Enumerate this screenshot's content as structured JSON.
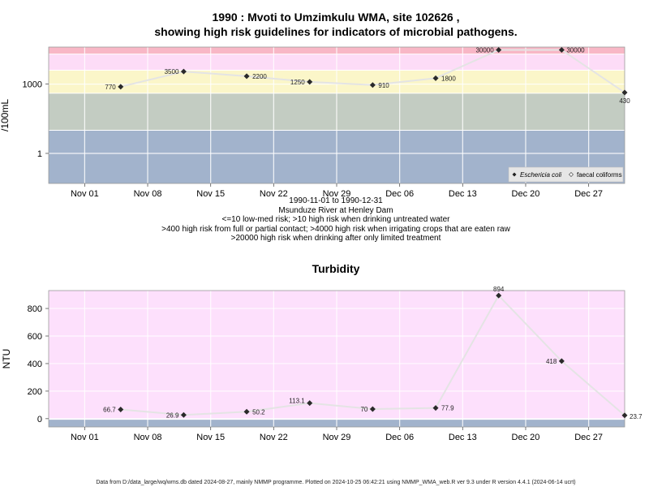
{
  "chart_data": [
    {
      "type": "line",
      "title_line1": "1990 : Mvoti to Umzimkulu WMA, site 102626 ,",
      "title_line2": "showing high risk guidelines for indicators of microbial pathogens.",
      "ylabel": "/100mL",
      "y_scale": "log",
      "yticks": [
        {
          "value": 1,
          "label": "1"
        },
        {
          "value": 1000,
          "label": "1000"
        }
      ],
      "ylim": [
        0.05,
        40000
      ],
      "xlim": [
        "1990-10-28",
        "1990-12-31"
      ],
      "xticks": [
        {
          "date": "1990-11-01",
          "label": "Nov 01"
        },
        {
          "date": "1990-11-08",
          "label": "Nov 08"
        },
        {
          "date": "1990-11-15",
          "label": "Nov 15"
        },
        {
          "date": "1990-11-22",
          "label": "Nov 22"
        },
        {
          "date": "1990-11-29",
          "label": "Nov 29"
        },
        {
          "date": "1990-12-06",
          "label": "Dec 06"
        },
        {
          "date": "1990-12-13",
          "label": "Dec 13"
        },
        {
          "date": "1990-12-20",
          "label": "Dec 20"
        },
        {
          "date": "1990-12-27",
          "label": "Dec 27"
        }
      ],
      "bands": [
        {
          "from": 0.05,
          "to": 10,
          "color": "#a2b3cc"
        },
        {
          "from": 10,
          "to": 400,
          "color": "#c3ccc2"
        },
        {
          "from": 400,
          "to": 4000,
          "color": "#fbf6c9"
        },
        {
          "from": 4000,
          "to": 20000,
          "color": "#fddcf7"
        },
        {
          "from": 20000,
          "to": 40000,
          "color": "#f8b7c6"
        }
      ],
      "series": [
        {
          "name": "Eschericia coli",
          "points": [
            {
              "x": "1990-11-05",
              "y": 770,
              "label": "770"
            },
            {
              "x": "1990-11-12",
              "y": 3500,
              "label": "3500"
            },
            {
              "x": "1990-11-19",
              "y": 2200,
              "label": "2200"
            },
            {
              "x": "1990-11-26",
              "y": 1250,
              "label": "1250"
            },
            {
              "x": "1990-12-03",
              "y": 910,
              "label": "910"
            },
            {
              "x": "1990-12-10",
              "y": 1800,
              "label": "1800"
            },
            {
              "x": "1990-12-17",
              "y": 30000,
              "label": "30000"
            },
            {
              "x": "1990-12-24",
              "y": 30000,
              "label": "30000"
            },
            {
              "x": "1990-12-31",
              "y": 430,
              "label": "430"
            }
          ]
        }
      ],
      "legend": {
        "position": "bottom-right",
        "items": [
          {
            "label": "Eschericia coli",
            "marker": "filled-diamond"
          },
          {
            "label": "faecal coliforms",
            "marker": "open-diamond"
          }
        ]
      },
      "subtitle_lines": [
        "1990-11-01 to 1990-12-31",
        "Msunduze River at Henley Dam",
        "<=10 low-med risk; >10 high risk when drinking untreated water",
        ">400 high risk from full or partial contact; >4000 high risk when irrigating crops that are eaten raw",
        ">20000 high risk when drinking after only limited treatment"
      ]
    },
    {
      "type": "line",
      "title": "Turbidity",
      "ylabel": "NTU",
      "ylim": [
        -60,
        930
      ],
      "yticks": [
        0,
        200,
        400,
        600,
        800
      ],
      "xlim": [
        "1990-10-28",
        "1990-12-31"
      ],
      "xticks": [
        {
          "date": "1990-11-01",
          "label": "Nov 01"
        },
        {
          "date": "1990-11-08",
          "label": "Nov 08"
        },
        {
          "date": "1990-11-15",
          "label": "Nov 15"
        },
        {
          "date": "1990-11-22",
          "label": "Nov 22"
        },
        {
          "date": "1990-11-29",
          "label": "Nov 29"
        },
        {
          "date": "1990-12-06",
          "label": "Dec 06"
        },
        {
          "date": "1990-12-13",
          "label": "Dec 13"
        },
        {
          "date": "1990-12-20",
          "label": "Dec 20"
        },
        {
          "date": "1990-12-27",
          "label": "Dec 27"
        }
      ],
      "bands": [
        {
          "from": -60,
          "to": -5,
          "color": "#a2b3cc"
        },
        {
          "from": -5,
          "to": 930,
          "color": "#fde0fc"
        }
      ],
      "series": [
        {
          "points": [
            {
              "x": "1990-11-05",
              "y": 66.7,
              "label": "66.7"
            },
            {
              "x": "1990-11-12",
              "y": 26.9,
              "label": "26.9"
            },
            {
              "x": "1990-11-19",
              "y": 50.2,
              "label": "50.2"
            },
            {
              "x": "1990-11-26",
              "y": 113.1,
              "label": "113.1"
            },
            {
              "x": "1990-12-03",
              "y": 70,
              "label": "70"
            },
            {
              "x": "1990-12-10",
              "y": 77.9,
              "label": "77.9"
            },
            {
              "x": "1990-12-17",
              "y": 894,
              "label": "894"
            },
            {
              "x": "1990-12-24",
              "y": 418,
              "label": "418"
            },
            {
              "x": "1990-12-31",
              "y": 23.7,
              "label": "23.7"
            }
          ]
        }
      ]
    }
  ],
  "footer": "Data from D:/data_large/wq/wms.db dated 2024-08-27, mainly NMMP programme. Plotted on 2024-10-25 06:42:21 using NMMP_WMA_web.R ver 9.3 under R version 4.4.1 (2024-06-14 ucrt)"
}
